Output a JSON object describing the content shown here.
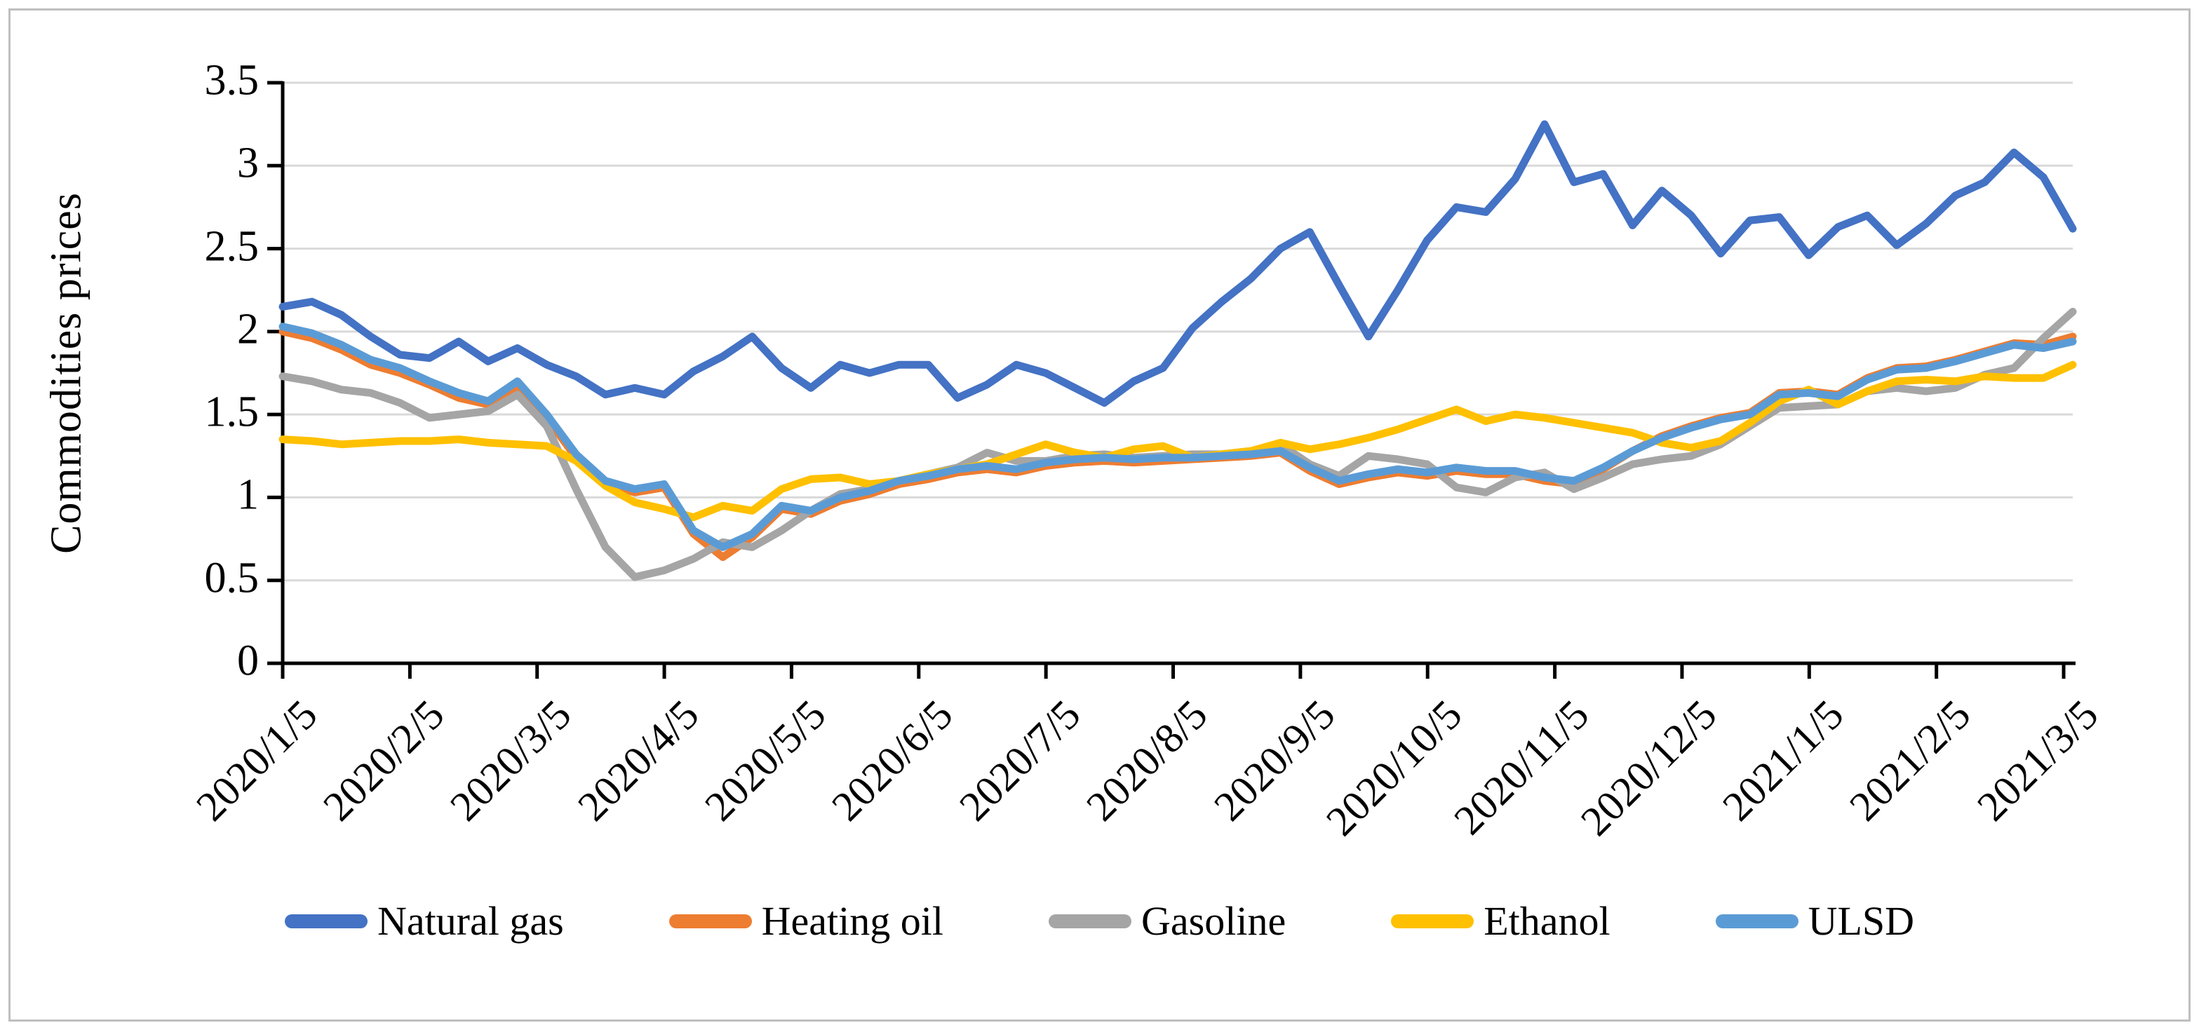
{
  "figure": {
    "background": "#ffffff",
    "border_color": "#bfbfbf"
  },
  "chart_data": {
    "type": "line",
    "title": "",
    "ylabel": "Commodities prices",
    "xlabel": "",
    "ylim": [
      0,
      3.5
    ],
    "grid": "horizontal",
    "gridline_color": "#d9d9d9",
    "axis_color": "#000000",
    "legend_position": "bottom",
    "y_ticks": [
      "0",
      "0.5",
      "1",
      "1.5",
      "2",
      "2.5",
      "3",
      "3.5"
    ],
    "y_tick_values": [
      0,
      0.5,
      1,
      1.5,
      2,
      2.5,
      3,
      3.5
    ],
    "x_tick_labels": [
      "2020/1/5",
      "2020/2/5",
      "2020/3/5",
      "2020/4/5",
      "2020/5/5",
      "2020/6/5",
      "2020/7/5",
      "2020/8/5",
      "2020/9/5",
      "2020/10/5",
      "2020/11/5",
      "2020/12/5",
      "2021/1/5",
      "2021/2/5",
      "2021/3/5"
    ],
    "x": [
      "2020/1/5",
      "2020/1/12",
      "2020/1/19",
      "2020/1/26",
      "2020/2/2",
      "2020/2/9",
      "2020/2/16",
      "2020/2/23",
      "2020/3/1",
      "2020/3/8",
      "2020/3/15",
      "2020/3/22",
      "2020/3/29",
      "2020/4/5",
      "2020/4/12",
      "2020/4/19",
      "2020/4/26",
      "2020/5/3",
      "2020/5/10",
      "2020/5/17",
      "2020/5/24",
      "2020/5/31",
      "2020/6/7",
      "2020/6/14",
      "2020/6/21",
      "2020/6/28",
      "2020/7/5",
      "2020/7/12",
      "2020/7/19",
      "2020/7/26",
      "2020/8/2",
      "2020/8/9",
      "2020/8/16",
      "2020/8/23",
      "2020/8/30",
      "2020/9/6",
      "2020/9/13",
      "2020/9/20",
      "2020/9/27",
      "2020/10/4",
      "2020/10/11",
      "2020/10/18",
      "2020/10/25",
      "2020/11/1",
      "2020/11/8",
      "2020/11/15",
      "2020/11/22",
      "2020/11/29",
      "2020/12/6",
      "2020/12/13",
      "2020/12/20",
      "2020/12/27",
      "2021/1/3",
      "2021/1/10",
      "2021/1/17",
      "2021/1/24",
      "2021/1/31",
      "2021/2/7",
      "2021/2/14",
      "2021/2/21",
      "2021/2/28",
      "2021/3/7"
    ],
    "series": [
      {
        "name": "Natural gas",
        "color": "#4472c4",
        "values": [
          2.15,
          2.18,
          2.1,
          1.97,
          1.86,
          1.84,
          1.94,
          1.82,
          1.9,
          1.8,
          1.73,
          1.62,
          1.66,
          1.62,
          1.76,
          1.85,
          1.97,
          1.78,
          1.66,
          1.8,
          1.75,
          1.8,
          1.8,
          1.6,
          1.68,
          1.8,
          1.75,
          1.66,
          1.57,
          1.7,
          1.78,
          2.02,
          2.18,
          2.32,
          2.5,
          2.6,
          2.28,
          1.97,
          2.25,
          2.55,
          2.75,
          2.72,
          2.92,
          3.25,
          2.9,
          2.95,
          2.64,
          2.85,
          2.7,
          2.47,
          2.67,
          2.69,
          2.46,
          2.63,
          2.7,
          2.52,
          2.65,
          2.82,
          2.9,
          3.08,
          2.93,
          2.62
        ]
      },
      {
        "name": "Heating oil",
        "color": "#ed7d31",
        "values": [
          2.0,
          1.96,
          1.89,
          1.8,
          1.75,
          1.68,
          1.6,
          1.56,
          1.67,
          1.48,
          1.24,
          1.08,
          1.03,
          1.06,
          0.78,
          0.64,
          0.76,
          0.93,
          0.9,
          0.98,
          1.02,
          1.08,
          1.11,
          1.15,
          1.17,
          1.15,
          1.19,
          1.21,
          1.22,
          1.21,
          1.22,
          1.23,
          1.24,
          1.25,
          1.27,
          1.16,
          1.08,
          1.12,
          1.15,
          1.13,
          1.16,
          1.14,
          1.14,
          1.1,
          1.08,
          1.17,
          1.28,
          1.37,
          1.43,
          1.48,
          1.51,
          1.63,
          1.64,
          1.62,
          1.72,
          1.78,
          1.79,
          1.83,
          1.88,
          1.93,
          1.92,
          1.97
        ]
      },
      {
        "name": "Gasoline",
        "color": "#a5a5a5",
        "values": [
          1.73,
          1.7,
          1.65,
          1.63,
          1.57,
          1.48,
          1.5,
          1.52,
          1.62,
          1.43,
          1.05,
          0.7,
          0.52,
          0.56,
          0.63,
          0.73,
          0.7,
          0.8,
          0.92,
          1.02,
          1.05,
          1.1,
          1.14,
          1.18,
          1.27,
          1.22,
          1.22,
          1.25,
          1.26,
          1.24,
          1.25,
          1.26,
          1.26,
          1.28,
          1.32,
          1.2,
          1.13,
          1.25,
          1.23,
          1.2,
          1.06,
          1.03,
          1.12,
          1.15,
          1.05,
          1.12,
          1.2,
          1.23,
          1.25,
          1.32,
          1.43,
          1.54,
          1.55,
          1.56,
          1.64,
          1.66,
          1.64,
          1.66,
          1.74,
          1.78,
          1.96,
          2.12
        ]
      },
      {
        "name": "Ethanol",
        "color": "#ffc000",
        "values": [
          1.35,
          1.34,
          1.32,
          1.33,
          1.34,
          1.34,
          1.35,
          1.33,
          1.32,
          1.31,
          1.22,
          1.07,
          0.97,
          0.93,
          0.88,
          0.95,
          0.92,
          1.05,
          1.11,
          1.12,
          1.08,
          1.1,
          1.14,
          1.17,
          1.2,
          1.26,
          1.32,
          1.27,
          1.24,
          1.29,
          1.31,
          1.24,
          1.26,
          1.28,
          1.33,
          1.29,
          1.32,
          1.36,
          1.41,
          1.47,
          1.53,
          1.46,
          1.5,
          1.48,
          1.45,
          1.42,
          1.39,
          1.33,
          1.3,
          1.34,
          1.45,
          1.58,
          1.65,
          1.56,
          1.64,
          1.7,
          1.71,
          1.7,
          1.73,
          1.72,
          1.72,
          1.8
        ]
      },
      {
        "name": "ULSD",
        "color": "#5b9bd5",
        "values": [
          2.03,
          1.99,
          1.92,
          1.83,
          1.78,
          1.7,
          1.63,
          1.58,
          1.7,
          1.5,
          1.26,
          1.1,
          1.05,
          1.08,
          0.8,
          0.7,
          0.78,
          0.95,
          0.92,
          1.0,
          1.04,
          1.1,
          1.13,
          1.17,
          1.19,
          1.17,
          1.21,
          1.23,
          1.24,
          1.23,
          1.24,
          1.24,
          1.25,
          1.26,
          1.28,
          1.18,
          1.1,
          1.14,
          1.17,
          1.15,
          1.18,
          1.16,
          1.16,
          1.12,
          1.1,
          1.18,
          1.28,
          1.36,
          1.42,
          1.47,
          1.5,
          1.62,
          1.63,
          1.61,
          1.71,
          1.77,
          1.78,
          1.82,
          1.87,
          1.92,
          1.9,
          1.94
        ]
      }
    ]
  }
}
